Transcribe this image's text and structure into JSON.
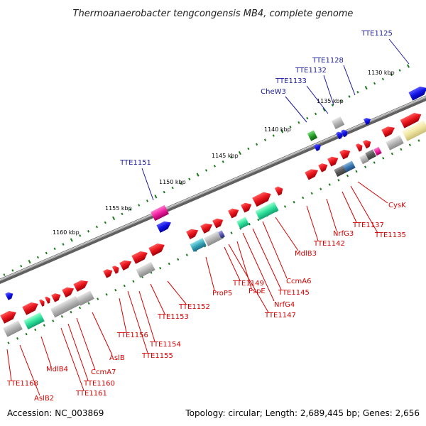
{
  "title": "Thermoanaerobacter tengcongensis MB4, complete genome",
  "footer": {
    "accession": "Accession: NC_003869",
    "summary": "Topology: circular; Length: 2,689,445 bp; Genes: 2,656"
  },
  "colors": {
    "forward_gene": "#e8141c",
    "reverse_gene": "#1414e8",
    "rna_gene": "#b0b0b0",
    "backbone": "#808080",
    "tick": "#1a7a1a",
    "label_red": "#d40000",
    "label_blue": "#1a1a9a"
  },
  "scale": {
    "tick_labels": [
      {
        "text": "1130 kbp"
      },
      {
        "text": "1135 kbp"
      },
      {
        "text": "1140 kbp"
      },
      {
        "text": "1145 kbp"
      },
      {
        "text": "1150 kbp"
      },
      {
        "text": "1155 kbp"
      },
      {
        "text": "1160 kbp"
      }
    ]
  },
  "labels": {
    "blue": [
      "TTE1125",
      "TTE1128",
      "TTE1132",
      "TTE1133",
      "CheW3",
      "TTE1151"
    ],
    "red": [
      "CysK",
      "TTE1135",
      "TTE1137",
      "NrfG3",
      "TTE1142",
      "MdlB3",
      "CcmA6",
      "TTE1145",
      "NrfG4",
      "TTE1147",
      "PspE",
      "TTE1149",
      "ProP5",
      "TTE1152",
      "TTE1153",
      "TTE1154",
      "TTE1155",
      "TTE1156",
      "AslB",
      "CcmA7",
      "TTE1160",
      "TTE1161",
      "MdlB4",
      "AslB2",
      "TTE1168"
    ]
  }
}
